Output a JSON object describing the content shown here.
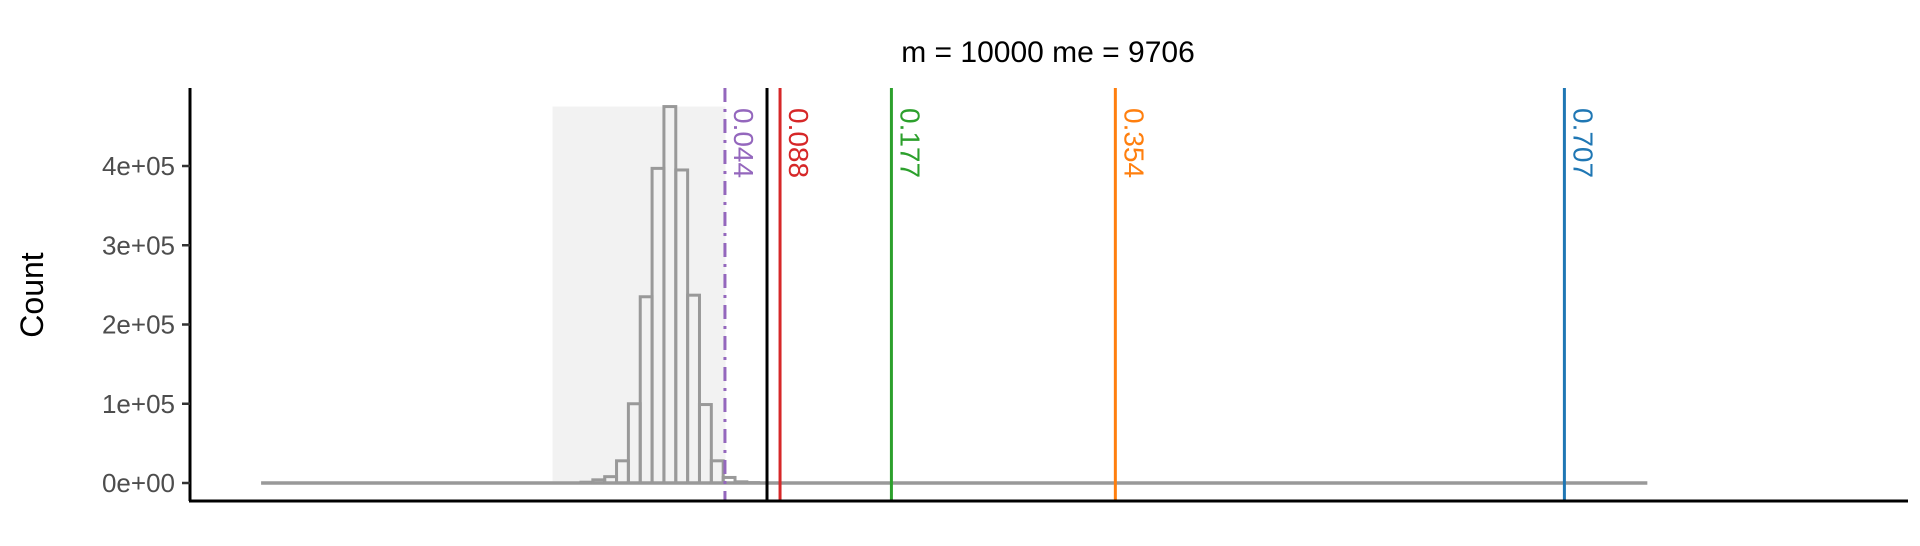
{
  "chart_data": {
    "type": "histogram",
    "title": "m = 10000 me = 9706",
    "xlabel": "",
    "ylabel": "Count",
    "xlim": [
      -0.45,
      1.0
    ],
    "ylim": [
      0,
      490000
    ],
    "x_tick_labels_shown": false,
    "y_ticks": [
      {
        "value": 0,
        "label": "0e+00"
      },
      {
        "value": 100000,
        "label": "1e+05"
      },
      {
        "value": 200000,
        "label": "2e+05"
      },
      {
        "value": 300000,
        "label": "3e+05"
      },
      {
        "value": 400000,
        "label": "4e+05"
      }
    ],
    "histogram": {
      "color": "#999999",
      "fill": "none",
      "baseline_range": [
        -0.39,
        0.78
      ],
      "bin_edges": [
        -0.13,
        -0.12,
        -0.11,
        -0.1,
        -0.09,
        -0.08,
        -0.07,
        -0.06,
        -0.05,
        -0.04,
        -0.03,
        -0.02,
        -0.01,
        0.0,
        0.01,
        0.02,
        0.03
      ],
      "counts": [
        0,
        1000,
        4000,
        8000,
        28000,
        100000,
        235000,
        397000,
        475000,
        395000,
        237000,
        99000,
        28000,
        7000,
        1500,
        500
      ]
    },
    "shaded_region": {
      "x": [
        -0.144,
        0.002
      ],
      "y": [
        0,
        475000
      ],
      "color": "#f2f2f2"
    },
    "reference_line": {
      "x": 0.037,
      "color": "#000000",
      "style": "solid"
    },
    "vlines": [
      {
        "x": 0.0015,
        "label": "0.044",
        "color": "#9467bd",
        "style": "dashdot"
      },
      {
        "x": 0.048,
        "label": "0.088",
        "color": "#d62728",
        "style": "solid"
      },
      {
        "x": 0.142,
        "label": "0.177",
        "color": "#2ca02c",
        "style": "solid"
      },
      {
        "x": 0.331,
        "label": "0.354",
        "color": "#ff7f0e",
        "style": "solid"
      },
      {
        "x": 0.71,
        "label": "0.707",
        "color": "#1f77b4",
        "style": "solid"
      }
    ],
    "grid": false,
    "legend": "none"
  }
}
